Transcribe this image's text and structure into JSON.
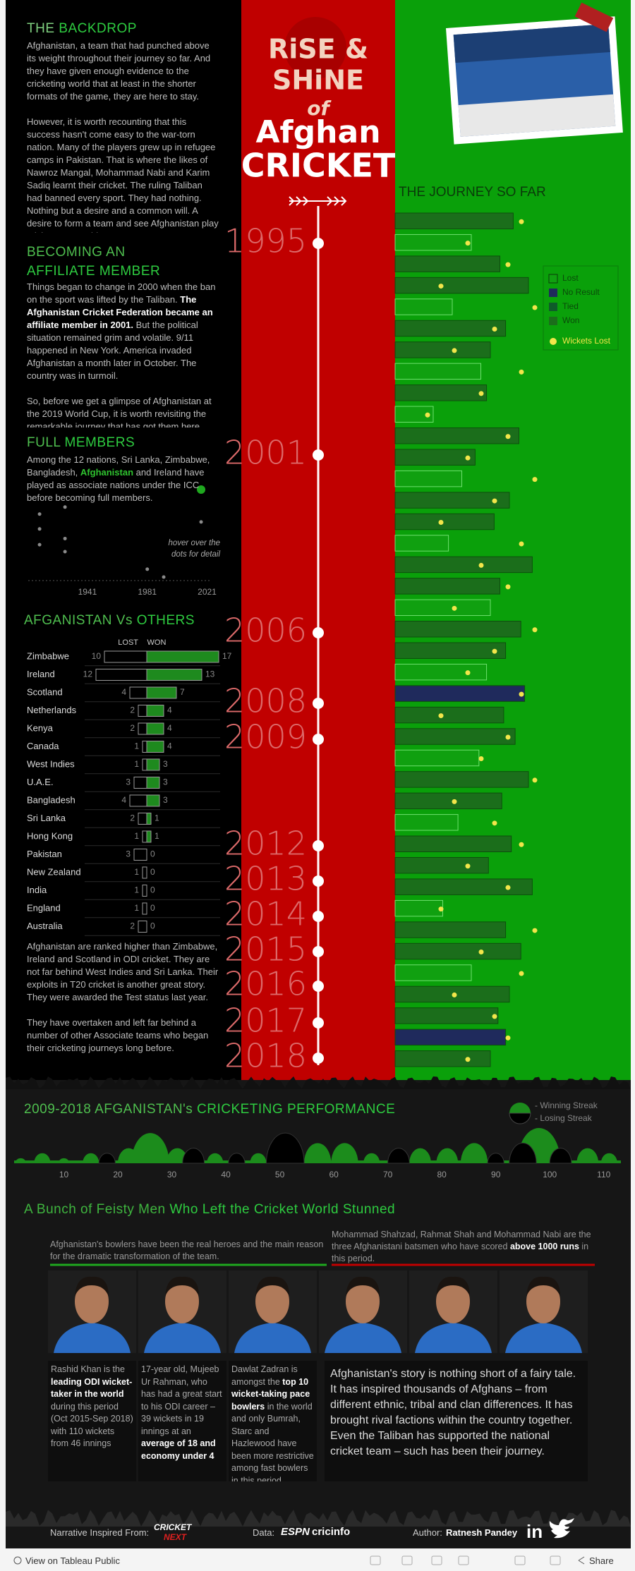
{
  "backdrop": {
    "title_a": "THE",
    "title_b": "BACKDROP",
    "paragraphs": [
      {
        "runs": [
          "Afghanistan, a team that had punched above its weight throughout their journey so far. And they have given enough evidence to the cricketing world that at least in the shorter formats of the game, they are here to stay."
        ]
      },
      {
        "runs": [
          "However, it is worth recounting that this success hasn't come easy to the war-torn nation. Many of the players grew up in refugee camps in Pakistan. That is where the likes of Nawroz Mangal, Mohammad Nabi and Karim Sadiq learnt their cricket. The ruling Taliban had banned every sport. They had nothing. Nothing but a desire and a common will. A desire to form a team and see Afghanistan play cricket on a world stage."
        ]
      }
    ]
  },
  "affiliate": {
    "title_a": "BECOMING AN",
    "title_b": "AFFILIATE MEMBER",
    "paragraphs": [
      {
        "runs": [
          "Things began to change in 2000 when the ban on the sport was lifted by the Taliban. ",
          {
            "bold": "The Afghanistan Cricket Federation became an affiliate member in 2001."
          },
          " But the political situation remained grim and volatile. 9/11 happened in New York. America invaded Afghanistan a month later in October. The country was in turmoil."
        ]
      },
      {
        "runs": [
          "So, before we get a glimpse of Afghanistan at the 2019 World Cup, it is worth revisiting the remarkable journey that has got them here."
        ]
      }
    ]
  },
  "full_members": {
    "title_a": "FULL",
    "title_b": "MEMBERS",
    "paragraphs": [
      {
        "runs": [
          "Among the 12 nations, Sri Lanka, Zimbabwe, Bangladesh, ",
          {
            "bold": "Afghanistan",
            "color": "#2fc42f"
          },
          " and Ireland have played as associate nations under the ICC before becoming full members."
        ]
      }
    ],
    "hint": "hover over the dots for detail"
  },
  "others_note": {
    "paragraphs": [
      {
        "runs": [
          "Afghanistan are ranked higher than Zimbabwe, Ireland and Scotland in ODI cricket. They are not far behind West Indies and Sri Lanka. Their exploits in T20 cricket is another great story. They were awarded the Test status last year."
        ]
      },
      {
        "runs": [
          "They have overtaken and left far behind a number of other Associate teams who began their cricketing journeys long before."
        ]
      }
    ]
  },
  "poster": {
    "title_lines": [
      "RiSE &",
      "SHiNE",
      "of",
      "Afghan",
      "CRICKET"
    ],
    "timeline": [
      1995,
      2001,
      2006,
      2008,
      2009,
      2012,
      2013,
      2014,
      2015,
      2016,
      2017,
      2018
    ]
  },
  "chart_data": [
    {
      "type": "scatter",
      "x": [
        1909,
        1909,
        1909,
        1926,
        1926,
        1926,
        1981,
        1992,
        2017,
        2017
      ],
      "values": [
        7.2,
        5.5,
        3.7,
        8,
        4.4,
        2.9,
        0.9,
        0,
        10,
        6.3
      ],
      "xlim": [
        1900,
        2025
      ],
      "xticks": [
        1941,
        1981,
        2021
      ],
      "ylim": [
        0,
        10
      ],
      "color": "#8a8a8a",
      "highlight": 8,
      "highlight_color": "#1fa81f"
    },
    {
      "type": "diverging",
      "title_a": "AFGANISTAN Vs",
      "title_b": "OTHERS",
      "categories": [
        "Zimbabwe",
        "Ireland",
        "Scotland",
        "Netherlands",
        "Kenya",
        "Canada",
        "West Indies",
        "U.A.E.",
        "Bangladesh",
        "Sri Lanka",
        "Hong Kong",
        "Pakistan",
        "New Zealand",
        "India",
        "England",
        "Australia"
      ],
      "series": [
        {
          "name": "LOST",
          "color": "#000000",
          "values": [
            10,
            12,
            4,
            2,
            2,
            1,
            1,
            3,
            4,
            2,
            1,
            3,
            1,
            1,
            1,
            2
          ]
        },
        {
          "name": "WON",
          "color": "#1e8a1e",
          "values": [
            17,
            13,
            7,
            4,
            4,
            4,
            3,
            3,
            3,
            1,
            1,
            0,
            0,
            0,
            0,
            0
          ]
        }
      ]
    },
    {
      "type": "bar",
      "title": "THE JOURNEY SO FAR",
      "xlim": [
        0,
        100
      ],
      "series": [
        {
          "name": "Lost",
          "color": "#10a010",
          "values": [
            null,
            40,
            null,
            null,
            30,
            null,
            null,
            45,
            null,
            20,
            null,
            null,
            35,
            null,
            null,
            28,
            null,
            null,
            50,
            null,
            null,
            48,
            null,
            null,
            null,
            44,
            null,
            null,
            33,
            null,
            null,
            null,
            25,
            null,
            null,
            40,
            null,
            null,
            null,
            null
          ]
        },
        {
          "name": "No Result",
          "color": "#1f2a5c",
          "values": [
            null,
            null,
            null,
            null,
            null,
            null,
            null,
            null,
            null,
            null,
            null,
            null,
            null,
            null,
            null,
            null,
            null,
            null,
            null,
            null,
            null,
            null,
            68,
            null,
            null,
            null,
            null,
            null,
            null,
            null,
            null,
            null,
            null,
            null,
            null,
            null,
            null,
            null,
            58,
            null
          ]
        },
        {
          "name": "Tied",
          "color": "#0f5a2a",
          "values": [
            null,
            null,
            null,
            null,
            null,
            null,
            null,
            null,
            null,
            null,
            null,
            null,
            null,
            null,
            null,
            null,
            null,
            null,
            null,
            null,
            null,
            null,
            null,
            null,
            null,
            null,
            null,
            null,
            null,
            null,
            null,
            null,
            null,
            null,
            null,
            null,
            null,
            null,
            null,
            null
          ]
        },
        {
          "name": "Won",
          "color": "#1b6e1b",
          "values": [
            62,
            null,
            55,
            70,
            null,
            58,
            50,
            null,
            48,
            null,
            65,
            42,
            null,
            60,
            52,
            null,
            72,
            55,
            null,
            66,
            58,
            null,
            null,
            57,
            63,
            null,
            70,
            56,
            null,
            61,
            49,
            72,
            null,
            58,
            66,
            null,
            60,
            54,
            null,
            50
          ]
        }
      ],
      "wickets": {
        "name": "Wickets Lost",
        "color": "#f2e64a",
        "lim": [
          0,
          10
        ],
        "values": [
          9,
          5,
          8,
          3,
          10,
          7,
          4,
          9,
          6,
          2,
          8,
          5,
          10,
          7,
          3,
          9,
          6,
          8,
          4,
          10,
          7,
          5,
          9,
          3,
          8,
          6,
          10,
          4,
          7,
          9,
          5,
          8,
          3,
          10,
          6,
          9,
          4,
          7,
          8,
          5
        ]
      }
    },
    {
      "type": "streak",
      "title_a": "2009-2018 AFGANISTAN's",
      "title_b": "CRICKETING PERFORMANCE",
      "xlim": [
        0,
        115
      ],
      "xticks": [
        10,
        20,
        30,
        40,
        50,
        60,
        70,
        80,
        90,
        100,
        110
      ],
      "ylim": [
        0,
        7
      ],
      "series": [
        {
          "name": "- Winning Streak",
          "color": "#1c8c1c",
          "x": [
            2,
            6,
            10,
            15,
            22,
            26,
            31,
            38,
            46,
            57,
            62,
            67,
            76,
            81,
            86,
            98,
            107,
            111
          ],
          "values": [
            1,
            2,
            1,
            2,
            3,
            6,
            3,
            2,
            2,
            4,
            4,
            2,
            3,
            3,
            4,
            7,
            3,
            2
          ]
        },
        {
          "name": "- Losing Streak",
          "color": "#000000",
          "x": [
            18,
            34,
            42,
            51,
            72,
            90,
            95,
            102
          ],
          "values": [
            2,
            3,
            2,
            6,
            3,
            2,
            4,
            3
          ]
        }
      ]
    }
  ],
  "players": {
    "title_a": "A Bunch of Feisty Men ",
    "title_b": "Who Left the Cricket World Stunned",
    "caption_bowlers": {
      "runs": [
        "Afghanistan's bowlers have been the real heroes and the main reason for the dramatic transformation of the team."
      ]
    },
    "caption_batsmen": {
      "runs": [
        "Mohammad Shahzad, Rahmat Shah and Mohammad Nabi are the three Afghanistani batsmen who have scored ",
        {
          "bold": "above 1000 runs"
        },
        " in this period."
      ]
    },
    "bios": [
      {
        "runs": [
          "Rashid Khan is the ",
          {
            "bold": "leading ODI wicket-taker in the world"
          },
          " during this period (Oct 2015-Sep 2018) with 110 wickets from 46 innings"
        ]
      },
      {
        "runs": [
          "17-year old, Mujeeb Ur Rahman, who has had a great start to his ODI career – 39 wickets in 19 innings at an ",
          {
            "bold": "average of 18 and economy under 4"
          }
        ]
      },
      {
        "runs": [
          "Dawlat Zadran is amongst the ",
          {
            "bold": "top 10 wicket-taking pace bowlers"
          },
          " in the world and only Bumrah, Starc and Hazlewood have been more restrictive among fast bowlers in this period."
        ]
      }
    ],
    "story": "Afghanistan's story is nothing short of a fairy tale. It has inspired thousands of Afghans – from different ethnic, tribal and clan differences. It has brought rival factions within the country together. Even the Taliban has supported the national cricket team – such has been their journey."
  },
  "footer": {
    "inspired": "Narrative Inspired From:",
    "cricket": "CRICKET",
    "next": "NEXT",
    "data": "Data:",
    "espn": "ESPN",
    "cricinfo": "cricinfo",
    "author": "Author:",
    "author_name": "Ratnesh Pandey",
    "linkedin": "in"
  },
  "toolbar": {
    "view": "View on Tableau Public",
    "share": "Share"
  }
}
